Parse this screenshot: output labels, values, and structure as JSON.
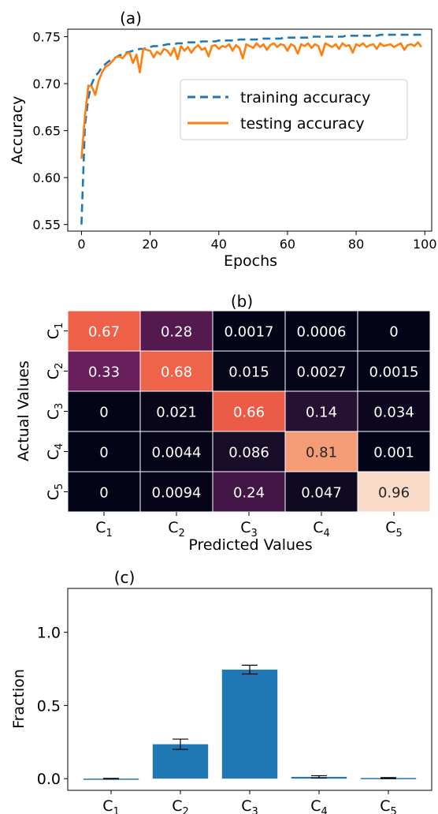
{
  "chart_data": [
    {
      "id": "a",
      "type": "line",
      "title": "(a)",
      "xlabel": "Epochs",
      "ylabel": "Accuracy",
      "xlim": [
        -4,
        102
      ],
      "ylim": [
        0.543,
        0.758
      ],
      "xticks": [
        0,
        20,
        40,
        60,
        80,
        100
      ],
      "yticks": [
        0.55,
        0.6,
        0.65,
        0.7,
        0.75
      ],
      "ytick_labels": [
        "0.55",
        "0.60",
        "0.65",
        "0.70",
        "0.75"
      ],
      "legend": "right",
      "grid": false,
      "x": [
        0,
        1,
        2,
        3,
        4,
        5,
        6,
        7,
        8,
        9,
        10,
        11,
        12,
        13,
        14,
        15,
        16,
        17,
        18,
        19,
        20,
        21,
        22,
        23,
        24,
        25,
        26,
        27,
        28,
        29,
        30,
        31,
        32,
        33,
        34,
        35,
        36,
        37,
        38,
        39,
        40,
        41,
        42,
        43,
        44,
        45,
        46,
        47,
        48,
        49,
        50,
        51,
        52,
        53,
        54,
        55,
        56,
        57,
        58,
        59,
        60,
        61,
        62,
        63,
        64,
        65,
        66,
        67,
        68,
        69,
        70,
        71,
        72,
        73,
        74,
        75,
        76,
        77,
        78,
        79,
        80,
        81,
        82,
        83,
        84,
        85,
        86,
        87,
        88,
        89,
        90,
        91,
        92,
        93,
        94,
        95,
        96,
        97,
        98,
        99
      ],
      "series": [
        {
          "name": "training accuracy",
          "color": "#1f77b4",
          "dash": true,
          "values": [
            0.55,
            0.655,
            0.685,
            0.7,
            0.708,
            0.712,
            0.718,
            0.721,
            0.724,
            0.726,
            0.728,
            0.73,
            0.731,
            0.733,
            0.734,
            0.735,
            0.736,
            0.737,
            0.737,
            0.738,
            0.739,
            0.74,
            0.74,
            0.741,
            0.741,
            0.742,
            0.742,
            0.742,
            0.743,
            0.743,
            0.743,
            0.744,
            0.744,
            0.744,
            0.744,
            0.745,
            0.745,
            0.745,
            0.745,
            0.745,
            0.746,
            0.746,
            0.746,
            0.746,
            0.746,
            0.746,
            0.747,
            0.747,
            0.747,
            0.747,
            0.747,
            0.747,
            0.748,
            0.748,
            0.748,
            0.748,
            0.748,
            0.748,
            0.748,
            0.749,
            0.749,
            0.749,
            0.749,
            0.749,
            0.749,
            0.749,
            0.749,
            0.75,
            0.75,
            0.75,
            0.75,
            0.75,
            0.75,
            0.75,
            0.75,
            0.75,
            0.75,
            0.751,
            0.751,
            0.751,
            0.751,
            0.751,
            0.751,
            0.751,
            0.751,
            0.751,
            0.751,
            0.752,
            0.752,
            0.752,
            0.752,
            0.752,
            0.752,
            0.752,
            0.752,
            0.752,
            0.752,
            0.752,
            0.752,
            0.752
          ]
        },
        {
          "name": "testing accuracy",
          "color": "#ff7f0e",
          "dash": false,
          "values": [
            0.62,
            0.665,
            0.698,
            0.697,
            0.688,
            0.703,
            0.712,
            0.718,
            0.72,
            0.724,
            0.728,
            0.729,
            0.727,
            0.732,
            0.733,
            0.722,
            0.731,
            0.712,
            0.737,
            0.736,
            0.735,
            0.728,
            0.734,
            0.731,
            0.737,
            0.735,
            0.73,
            0.738,
            0.726,
            0.74,
            0.735,
            0.739,
            0.733,
            0.738,
            0.741,
            0.736,
            0.738,
            0.729,
            0.74,
            0.741,
            0.737,
            0.74,
            0.739,
            0.742,
            0.735,
            0.741,
            0.738,
            0.727,
            0.742,
            0.74,
            0.738,
            0.743,
            0.739,
            0.742,
            0.736,
            0.741,
            0.743,
            0.739,
            0.742,
            0.741,
            0.735,
            0.742,
            0.74,
            0.732,
            0.742,
            0.74,
            0.743,
            0.738,
            0.742,
            0.74,
            0.73,
            0.743,
            0.741,
            0.739,
            0.742,
            0.737,
            0.743,
            0.74,
            0.741,
            0.733,
            0.742,
            0.74,
            0.743,
            0.739,
            0.741,
            0.742,
            0.737,
            0.743,
            0.74,
            0.741,
            0.742,
            0.739,
            0.741,
            0.743,
            0.736,
            0.741,
            0.742,
            0.74,
            0.744,
            0.739
          ]
        }
      ]
    },
    {
      "id": "b",
      "type": "heatmap",
      "title": "(b)",
      "xlabel": "Predicted Values",
      "ylabel": "Actual Values",
      "x_categories": [
        "C1",
        "C2",
        "C3",
        "C4",
        "C5"
      ],
      "y_categories": [
        "C1",
        "C2",
        "C3",
        "C4",
        "C5"
      ],
      "cells": [
        [
          "0.67",
          "0.28",
          "0.0017",
          "0.0006",
          "0"
        ],
        [
          "0.33",
          "0.68",
          "0.015",
          "0.0027",
          "0.0015"
        ],
        [
          "0",
          "0.021",
          "0.66",
          "0.14",
          "0.034"
        ],
        [
          "0",
          "0.0044",
          "0.086",
          "0.81",
          "0.001"
        ],
        [
          "0",
          "0.0094",
          "0.24",
          "0.047",
          "0.96"
        ]
      ],
      "values": [
        [
          0.67,
          0.28,
          0.0017,
          0.0006,
          0
        ],
        [
          0.33,
          0.68,
          0.015,
          0.0027,
          0.0015
        ],
        [
          0,
          0.021,
          0.66,
          0.14,
          0.034
        ],
        [
          0,
          0.0044,
          0.086,
          0.81,
          0.001
        ],
        [
          0,
          0.0094,
          0.24,
          0.047,
          0.96
        ]
      ],
      "colormap": "rocket"
    },
    {
      "id": "c",
      "type": "bar",
      "title": "(c)",
      "xlabel": "",
      "ylabel": "Fraction",
      "categories": [
        "C1",
        "C2",
        "C3",
        "C4",
        "C5"
      ],
      "values": [
        0.0,
        0.235,
        0.745,
        0.012,
        0.004
      ],
      "errors": [
        0.002,
        0.035,
        0.03,
        0.008,
        0.003
      ],
      "ylim": [
        -0.08,
        1.3
      ],
      "yticks": [
        0.0,
        0.5,
        1.0
      ],
      "ytick_labels": [
        "0.0",
        "0.5",
        "1.0"
      ],
      "bar_color": "#1f77b4"
    }
  ]
}
